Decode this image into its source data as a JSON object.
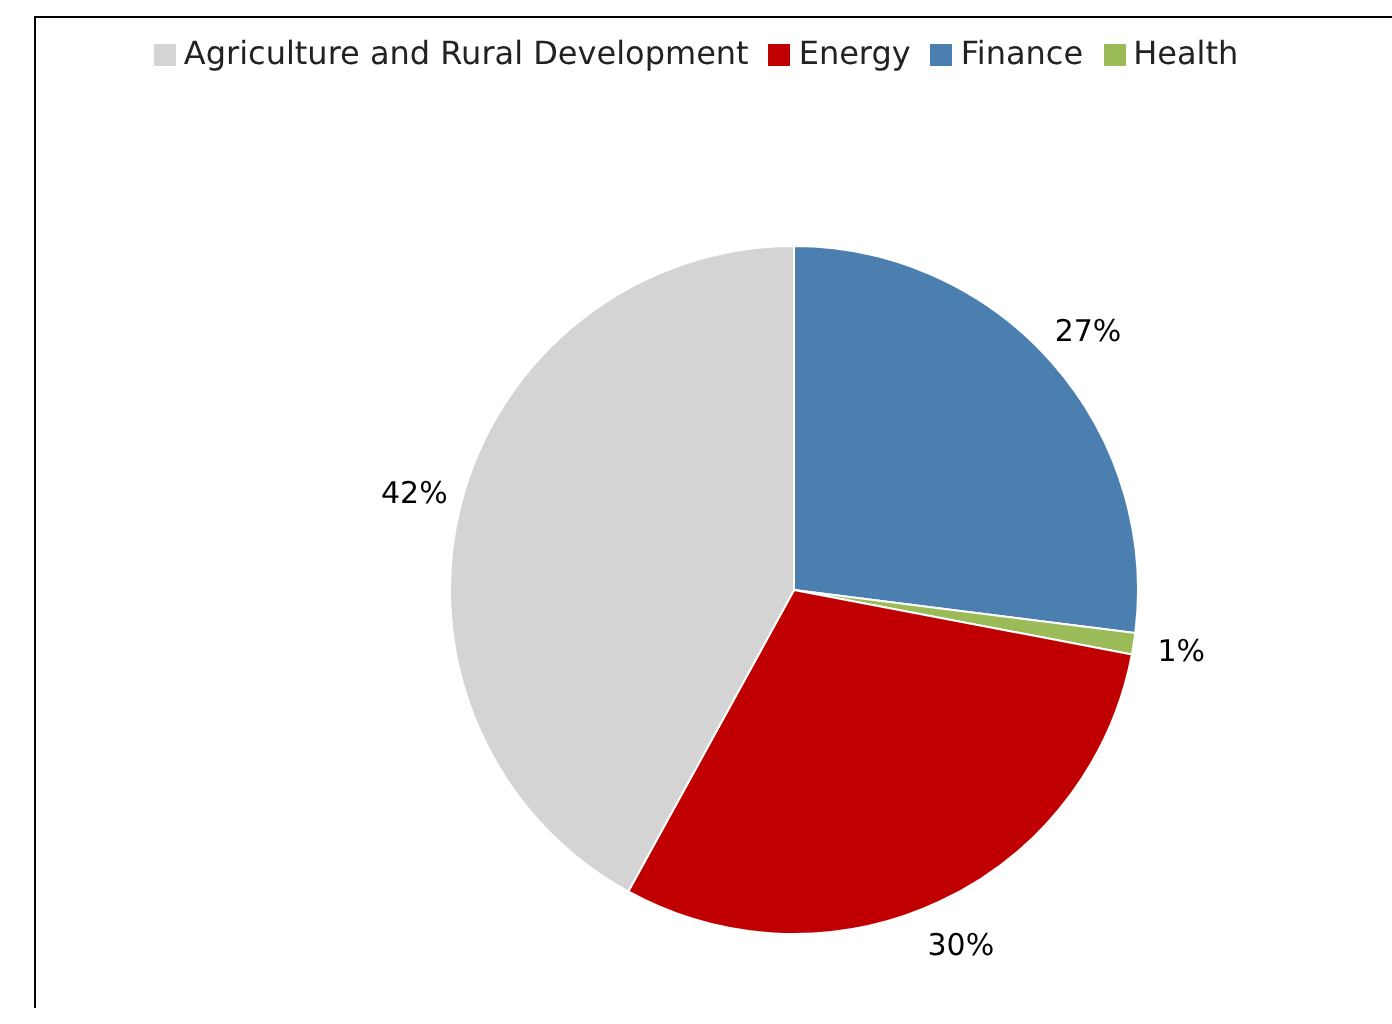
{
  "chart_data": {
    "type": "pie",
    "categories": [
      "Finance",
      "Health",
      "Energy",
      "Agriculture and Rural Development"
    ],
    "values": [
      27,
      1,
      30,
      42
    ],
    "value_labels": [
      "27%",
      "1%",
      "30%",
      "42%"
    ],
    "colors": [
      "#4a7fb0",
      "#9bbb59",
      "#c00000",
      "#d4d4d4"
    ],
    "legend": "top"
  }
}
